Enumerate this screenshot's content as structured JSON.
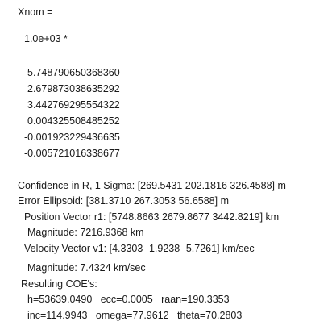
{
  "header": "Xnom =",
  "scale": "1.0e+03 *",
  "vector": [
    "5.748790650368360",
    "2.679873038635292",
    "3.442769295554322",
    "0.004325508485252",
    "-0.001923229436635",
    "-0.005721016338677"
  ],
  "results": {
    "confidence": "Confidence in R, 1 Sigma: [269.5431 202.1816 326.4588] m",
    "ellipsoid": "Error Ellipsoid: [381.3710 267.3053 56.6588] m",
    "position": "Position Vector r1: [5748.8663 2679.8677 3442.8219] km",
    "position_mag": "Magnitude: 7216.9368 km",
    "velocity": "Velocity Vector v1: [4.3303 -1.9238 -5.7261] km/sec",
    "velocity_mag": "Magnitude: 7.4324 km/sec",
    "coe_header": "Resulting COE's:",
    "coe_line1": "h=53639.0490   ecc=0.0005   raan=190.3353",
    "coe_line2": "inc=114.9943   omega=77.9612   theta=70.2803"
  }
}
